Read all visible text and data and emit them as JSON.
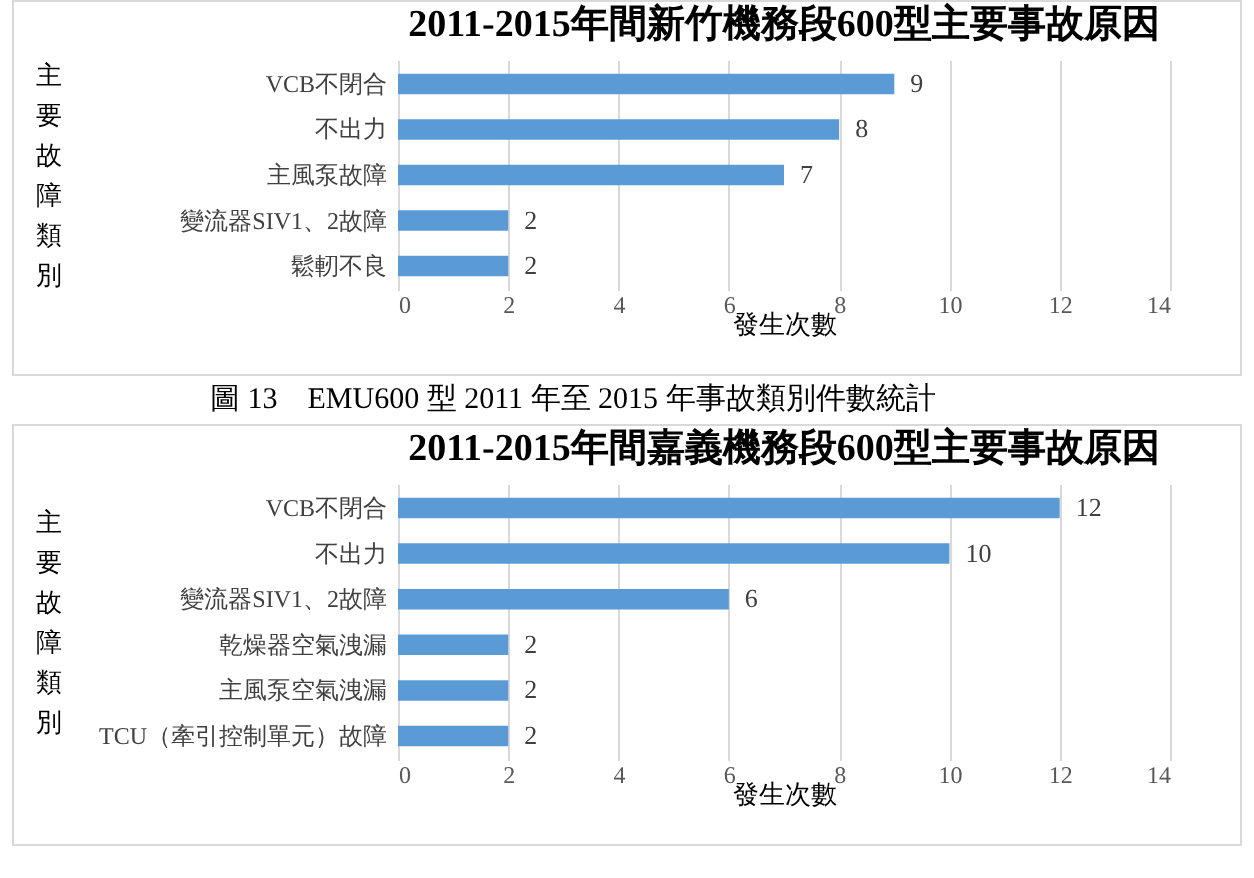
{
  "chart_data": [
    {
      "type": "bar",
      "orientation": "horizontal",
      "title": "2011-2015年間新竹機務段600型主要事故原因",
      "xlabel": "發生次數",
      "ylabel": "主要故障類別",
      "categories": [
        "VCB不閉合",
        "不出力",
        "主風泵故障",
        "變流器SIV1、2故障",
        "鬆軔不良"
      ],
      "values": [
        9,
        8,
        7,
        2,
        2
      ],
      "color": "#5b9bd5",
      "xlim": [
        0,
        14
      ],
      "xticks": [
        0,
        2,
        4,
        6,
        8,
        10,
        12,
        14
      ],
      "grid": "x",
      "data_labels": true,
      "annotations": [
        "圖 13　EMU600 型 2011 年至 2015 年事故類別件數統計"
      ]
    },
    {
      "type": "bar",
      "orientation": "horizontal",
      "title": "2011-2015年間嘉義機務段600型主要事故原因",
      "xlabel": "發生次數",
      "ylabel": "主要故障類別",
      "categories": [
        "VCB不閉合",
        "不出力",
        "變流器SIV1、2故障",
        "乾燥器空氣洩漏",
        "主風泵空氣洩漏",
        "TCU（牽引控制單元）故障"
      ],
      "values": [
        12,
        10,
        6,
        2,
        2,
        2
      ],
      "color": "#5b9bd5",
      "xlim": [
        0,
        14
      ],
      "xticks": [
        0,
        2,
        4,
        6,
        8,
        10,
        12,
        14
      ],
      "grid": "x",
      "data_labels": true
    }
  ]
}
